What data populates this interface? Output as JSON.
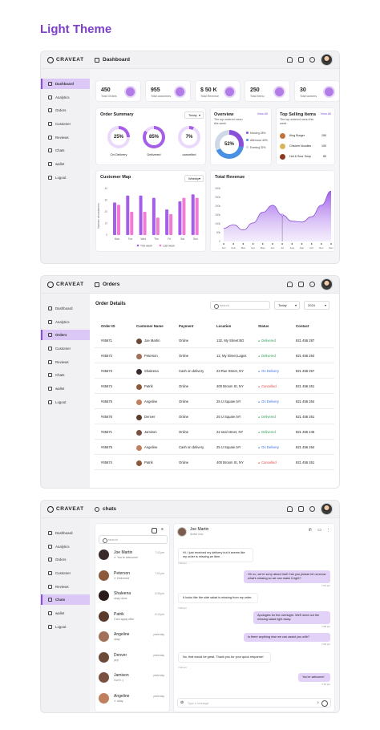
{
  "theme_title": "Light Theme",
  "brand": "CRAVEAT",
  "sidebar": [
    "Dashboard",
    "Analytics",
    "Orders",
    "Customer",
    "Reviews",
    "Chats",
    "wallet",
    "Logout"
  ],
  "dashboard": {
    "title": "Dashboard",
    "stats": [
      {
        "value": "450",
        "label": "Total Orders"
      },
      {
        "value": "955",
        "label": "Total customers"
      },
      {
        "value": "$ 50 K",
        "label": "Total Revenue"
      },
      {
        "value": "250",
        "label": "Total Menu"
      },
      {
        "value": "30",
        "label": "Total workers"
      }
    ],
    "order_summary": {
      "title": "Order Summary",
      "filter": "Today",
      "items": [
        {
          "pct": 25,
          "label": "On Delivery"
        },
        {
          "pct": 85,
          "label": "Delivered"
        },
        {
          "pct": 7,
          "label": "cancelled"
        }
      ]
    },
    "overview": {
      "title": "Overview",
      "view_all": "View All",
      "subtitle": "The top ordered menu this week",
      "center": "52%",
      "legend": [
        "Morning 28%",
        "Afternoon 40%",
        "Evening 32%"
      ],
      "slices": [
        28,
        40,
        32
      ],
      "colors": [
        "#8a4fd8",
        "#4a90e2",
        "#cfd8e6"
      ]
    },
    "top_selling": {
      "title": "Top Selling Items",
      "view_all": "View All",
      "subtitle": "The top ordered menu this week",
      "items": [
        {
          "name": "King Burger",
          "qty": "150"
        },
        {
          "name": "Chicken Noodles",
          "qty": "100"
        },
        {
          "name": "Hot & Sour Soup",
          "qty": "80"
        }
      ]
    },
    "customer_map": {
      "title": "Customer Map",
      "filter": "Weekly",
      "ylabel": "Number of customers",
      "ticks": [
        "0",
        "10",
        "20",
        "30",
        "40"
      ],
      "legend": [
        "This week",
        "Last week"
      ]
    },
    "total_revenue": {
      "title": "Total Revenue",
      "y_ticks": [
        "300k",
        "250k",
        "200k",
        "150k",
        "100k",
        "50k",
        "0"
      ],
      "months": [
        "Jan",
        "Feb",
        "Mar",
        "Apr",
        "May",
        "Jun",
        "Jul",
        "Aug",
        "Sep",
        "Oct",
        "Nov",
        "Dec"
      ]
    }
  },
  "chart_data": [
    {
      "type": "bar",
      "title": "Customer Map",
      "categories": [
        "Mon",
        "Tue",
        "Wed",
        "Thu",
        "Fri",
        "Sat",
        "Sun"
      ],
      "ylabel": "Number of customers",
      "ylim": [
        0,
        40
      ],
      "series": [
        {
          "name": "This week",
          "values": [
            28,
            34,
            34,
            32,
            22,
            29,
            35
          ]
        },
        {
          "name": "Last week",
          "values": [
            26,
            20,
            20,
            15,
            18,
            32,
            32
          ]
        }
      ]
    },
    {
      "type": "area",
      "title": "Total Revenue",
      "categories": [
        "Jan",
        "Feb",
        "Mar",
        "Apr",
        "May",
        "Jun",
        "Jul",
        "Aug",
        "Sep",
        "Oct",
        "Nov",
        "Dec"
      ],
      "ylim": [
        0,
        300
      ],
      "values": [
        75,
        95,
        65,
        105,
        165,
        205,
        150,
        115,
        110,
        140,
        205,
        285
      ]
    }
  ],
  "orders": {
    "title": "Orders",
    "heading": "Order Details",
    "search_placeholder": "search",
    "filter_today": "Today",
    "filter_year": "2024",
    "columns": [
      "Order ID",
      "Customer Name",
      "Payment",
      "Location",
      "Status",
      "Contact"
    ],
    "rows": [
      [
        "#45671",
        "Joe Martin",
        "Online",
        "132, My Street BG",
        "Delivered",
        "821 456 287"
      ],
      [
        "#45672",
        "Peterson",
        "Online",
        "12, My Street,Lagos",
        "Delivered",
        "821 456 264"
      ],
      [
        "#45673",
        "Shaleena",
        "Cash on delivery",
        "23 Rue Street, NY",
        "On Delivery",
        "821 456 267"
      ],
      [
        "#45674",
        "Patrik",
        "Online",
        "400 Broom St, NY",
        "Cancelled",
        "821 456 261"
      ],
      [
        "#45675",
        "Angeline",
        "Online",
        "25 U Square,NY",
        "On Delivery",
        "821 456 264"
      ],
      [
        "#45676",
        "Denver",
        "Online",
        "25 U Square,NY",
        "Delivered",
        "821 456 261"
      ],
      [
        "#45671",
        "Jamison",
        "Online",
        "22 seal street, NY",
        "Delivered",
        "821 456 245"
      ],
      [
        "#45675",
        "Angeline",
        "Cash on delivery",
        "25 U Square,NY",
        "On Delivery",
        "821 456 264"
      ],
      [
        "#45674",
        "Patrik",
        "Online",
        "400 Broom St, NY",
        "Cancelled",
        "821 456 261"
      ]
    ]
  },
  "chats": {
    "title": "chats",
    "search_placeholder": "search",
    "message_placeholder": "Type a message",
    "contacts": [
      {
        "name": "Joe Martin",
        "preview": "✔ You're welcome!",
        "time": "7:12 pm"
      },
      {
        "name": "Peterson",
        "preview": "✔ Delivered",
        "time": "7:01 pm"
      },
      {
        "name": "Shaleena",
        "preview": "okay done",
        "time": "6:30 pm"
      },
      {
        "name": "Patrik",
        "preview": "Cant apply offer",
        "time": "6:12 pm"
      },
      {
        "name": "Angeline",
        "preview": "okay",
        "time": "yesterday"
      },
      {
        "name": "Denver",
        "preview": "yep",
        "time": "yesterday"
      },
      {
        "name": "Jamison",
        "preview": "Got it :)",
        "time": "yesterday"
      },
      {
        "name": "Angeline",
        "preview": "✔ okay",
        "time": "yesterday"
      }
    ],
    "active": {
      "name": "Joe Martin",
      "status": "Active now"
    },
    "messages": [
      {
        "dir": "in",
        "text": "Hi, I just received my delivery but it seems like my order is missing an item.",
        "time": "7:03 pm"
      },
      {
        "dir": "out",
        "text": "Oh no, we're sorry about that! Can you please let us know what's missing so we can make it right?",
        "time": "7:04 pm"
      },
      {
        "dir": "in",
        "text": "It looks like the side salad is missing from my order.",
        "time": "7:06 pm"
      },
      {
        "dir": "out",
        "text": "Apologies for the oversight. We'll send out the missing salad right away.",
        "time": "7:08 pm"
      },
      {
        "dir": "out",
        "text": "Is there anything else we can assist you with?",
        "time": "7:09 pm"
      },
      {
        "dir": "in",
        "text": "No, that would be great. Thank you for your quick response!",
        "time": "7:10 pm"
      },
      {
        "dir": "out",
        "text": "You're welcome!",
        "time": "7:12 pm"
      }
    ]
  }
}
